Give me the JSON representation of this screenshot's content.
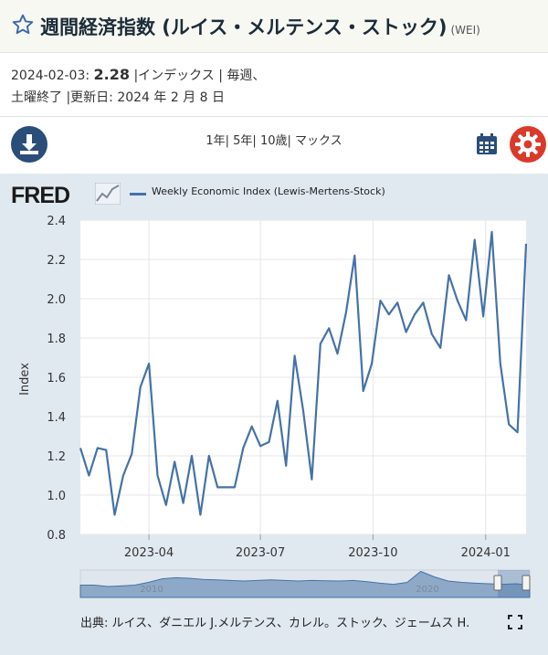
{
  "header": {
    "title": "週間経済指数 (ルイス・メルテンス・ストック)",
    "code": "(WEI)"
  },
  "meta": {
    "date": "2024-02-03:",
    "value": "2.28",
    "line1_rest": "|インデックス | 毎週、",
    "line2": "土曜終了 |更新日: 2024 年 2 月 8 日"
  },
  "range_nav": {
    "one_year": "1年",
    "five_year": "5年",
    "ten_year": "10歳",
    "max": "マックス",
    "sep": "|"
  },
  "logo": {
    "text": "FRED"
  },
  "source": {
    "text": "出典: ルイス、ダニエル J.メルテンス、カレル。ストック、ジェームス H."
  },
  "navigator": {
    "labels": [
      "2010",
      "2020"
    ]
  },
  "colors": {
    "series": "#4572a7",
    "panel": "#e1e9f0",
    "accent": "#2a4d7a",
    "settings": "#d93a2b"
  },
  "icons": [
    "star-icon",
    "download-icon",
    "calendar-icon",
    "gear-icon",
    "fullscreen-icon"
  ],
  "chart_data": {
    "type": "line",
    "title": "",
    "xlabel": "",
    "ylabel": "Index",
    "legend": "Weekly Economic Index (Lewis-Mertens-Stock)",
    "legend_position": "top-left",
    "grid": true,
    "ylim": [
      0.8,
      2.4
    ],
    "yticks": [
      "0.8",
      "1.0",
      "1.2",
      "1.4",
      "1.6",
      "1.8",
      "2.0",
      "2.2",
      "2.4"
    ],
    "xlim": [
      "2023-02-04",
      "2024-02-03"
    ],
    "xticks": [
      {
        "date": "2023-04-01",
        "label": "2023-04"
      },
      {
        "date": "2023-07-01",
        "label": "2023-07"
      },
      {
        "date": "2023-10-01",
        "label": "2023-10"
      },
      {
        "date": "2024-01-01",
        "label": "2024-01"
      }
    ],
    "series": [
      {
        "name": "Weekly Economic Index (Lewis-Mertens-Stock)",
        "points": [
          [
            "2023-02-04",
            1.24
          ],
          [
            "2023-02-11",
            1.1
          ],
          [
            "2023-02-18",
            1.24
          ],
          [
            "2023-02-25",
            1.23
          ],
          [
            "2023-03-04",
            0.9
          ],
          [
            "2023-03-11",
            1.1
          ],
          [
            "2023-03-18",
            1.21
          ],
          [
            "2023-03-25",
            1.55
          ],
          [
            "2023-04-01",
            1.67
          ],
          [
            "2023-04-08",
            1.1
          ],
          [
            "2023-04-15",
            0.95
          ],
          [
            "2023-04-22",
            1.17
          ],
          [
            "2023-04-29",
            0.96
          ],
          [
            "2023-05-06",
            1.2
          ],
          [
            "2023-05-13",
            0.9
          ],
          [
            "2023-05-20",
            1.2
          ],
          [
            "2023-05-27",
            1.04
          ],
          [
            "2023-06-03",
            1.04
          ],
          [
            "2023-06-10",
            1.04
          ],
          [
            "2023-06-17",
            1.24
          ],
          [
            "2023-06-24",
            1.35
          ],
          [
            "2023-07-01",
            1.25
          ],
          [
            "2023-07-08",
            1.27
          ],
          [
            "2023-07-15",
            1.48
          ],
          [
            "2023-07-22",
            1.15
          ],
          [
            "2023-07-29",
            1.71
          ],
          [
            "2023-08-05",
            1.43
          ],
          [
            "2023-08-12",
            1.08
          ],
          [
            "2023-08-19",
            1.77
          ],
          [
            "2023-08-26",
            1.85
          ],
          [
            "2023-09-02",
            1.72
          ],
          [
            "2023-09-09",
            1.93
          ],
          [
            "2023-09-16",
            2.22
          ],
          [
            "2023-09-23",
            1.53
          ],
          [
            "2023-09-30",
            1.67
          ],
          [
            "2023-10-07",
            1.99
          ],
          [
            "2023-10-14",
            1.92
          ],
          [
            "2023-10-21",
            1.98
          ],
          [
            "2023-10-28",
            1.83
          ],
          [
            "2023-11-04",
            1.92
          ],
          [
            "2023-11-11",
            1.98
          ],
          [
            "2023-11-18",
            1.82
          ],
          [
            "2023-11-25",
            1.75
          ],
          [
            "2023-12-02",
            2.12
          ],
          [
            "2023-12-09",
            1.99
          ],
          [
            "2023-12-16",
            1.89
          ],
          [
            "2023-12-23",
            2.3
          ],
          [
            "2023-12-30",
            1.91
          ],
          [
            "2024-01-06",
            2.34
          ],
          [
            "2024-01-13",
            1.67
          ],
          [
            "2024-01-20",
            1.36
          ],
          [
            "2024-01-27",
            1.32
          ],
          [
            "2024-02-03",
            2.28
          ]
        ]
      }
    ]
  }
}
